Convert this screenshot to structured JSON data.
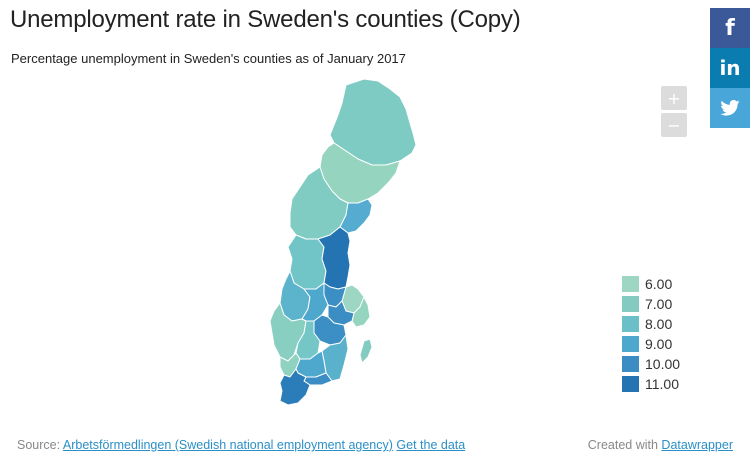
{
  "header": {
    "title": "Unemployment rate in Sweden's counties (Copy)",
    "subtitle": "Percentage unemployment in Sweden's counties as of January 2017"
  },
  "share": {
    "facebook": "f",
    "linkedin": "in",
    "twitter_icon": "twitter-bird-icon"
  },
  "zoom": {
    "plus": "+",
    "minus": "−"
  },
  "legend": [
    {
      "label": "6.00",
      "color": "#9dd6c2"
    },
    {
      "label": "7.00",
      "color": "#83cbc1"
    },
    {
      "label": "8.00",
      "color": "#6abfc8"
    },
    {
      "label": "9.00",
      "color": "#4ea7cd"
    },
    {
      "label": "10.00",
      "color": "#3b8dc4"
    },
    {
      "label": "11.00",
      "color": "#2474b3"
    }
  ],
  "regions": [
    {
      "name": "Norrbotten",
      "color": "#7ecbc4"
    },
    {
      "name": "Västerbotten",
      "color": "#95d4be"
    },
    {
      "name": "Jämtland",
      "color": "#80ccc3"
    },
    {
      "name": "Västernorrland",
      "color": "#55abd0"
    },
    {
      "name": "Dalarna",
      "color": "#72c5c6"
    },
    {
      "name": "Gävleborg",
      "color": "#2474b3"
    },
    {
      "name": "Värmland",
      "color": "#5cb3cc"
    },
    {
      "name": "Uppsala",
      "color": "#9dd6c2"
    },
    {
      "name": "Västmanland",
      "color": "#3c8fc4"
    },
    {
      "name": "Örebro",
      "color": "#4ea7cd"
    },
    {
      "name": "Stockholm",
      "color": "#95d4be"
    },
    {
      "name": "Södermanland",
      "color": "#3b8dc4"
    },
    {
      "name": "Västra Götaland",
      "color": "#88cfc1"
    },
    {
      "name": "Östergötland",
      "color": "#3c8fc4"
    },
    {
      "name": "Jönköping",
      "color": "#75c6c6"
    },
    {
      "name": "Kalmar",
      "color": "#5ab1cc"
    },
    {
      "name": "Halland",
      "color": "#90d2c0"
    },
    {
      "name": "Kronoberg",
      "color": "#4ea7cd"
    },
    {
      "name": "Blekinge",
      "color": "#3b8dc4"
    },
    {
      "name": "Skåne",
      "color": "#2a7db9"
    },
    {
      "name": "Gotland",
      "color": "#83cbc1"
    }
  ],
  "footer": {
    "source_prefix": "Source:",
    "source_link": "Arbetsförmedlingen (Swedish national employment agency)",
    "get_data": "Get the data",
    "created_with": "Created with",
    "tool": "Datawrapper"
  }
}
